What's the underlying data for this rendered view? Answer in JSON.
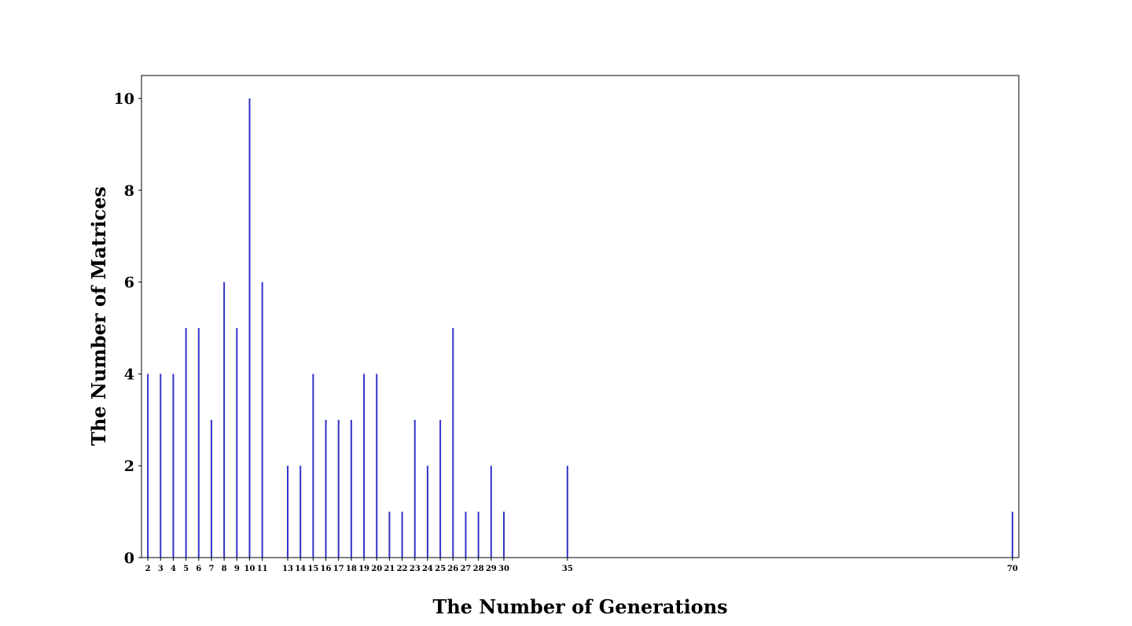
{
  "chart_data": {
    "type": "bar",
    "title": "",
    "xlabel": "The Number of Generations",
    "ylabel": "The Number of Matrices",
    "x": [
      2,
      3,
      4,
      5,
      6,
      7,
      8,
      9,
      10,
      11,
      13,
      14,
      15,
      16,
      17,
      18,
      19,
      20,
      21,
      22,
      23,
      24,
      25,
      26,
      27,
      28,
      29,
      30,
      35,
      70
    ],
    "values": [
      4,
      4,
      4,
      5,
      5,
      3,
      6,
      5,
      10,
      6,
      2,
      2,
      4,
      3,
      3,
      3,
      4,
      4,
      1,
      1,
      3,
      2,
      3,
      5,
      1,
      1,
      2,
      1,
      2,
      1
    ],
    "xlim": [
      1.5,
      70.5
    ],
    "ylim": [
      0,
      10.5
    ],
    "yticks": [
      0,
      2,
      4,
      6,
      8,
      10
    ],
    "bar_color": "#3333cc",
    "grid": false,
    "legend": "none"
  }
}
